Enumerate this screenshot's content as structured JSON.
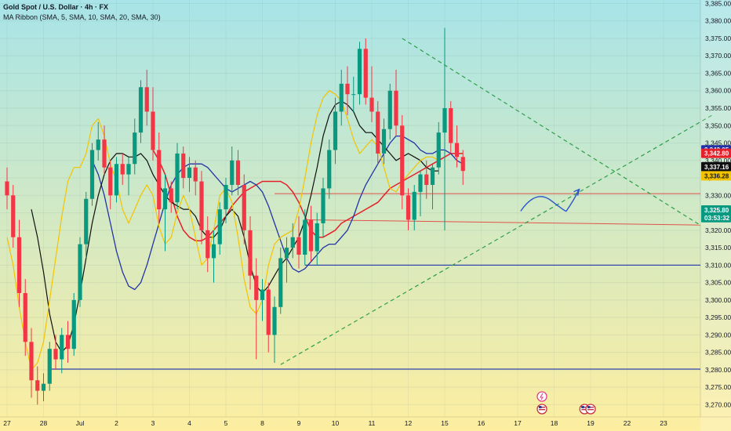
{
  "header": {
    "title": "Gold Spot / U.S. Dollar · 4h · FX",
    "indicator": "MA Ribbon (SMA, 5, SMA, 10, SMA, 20, SMA, 30)"
  },
  "colors": {
    "bull": "#089981",
    "bear": "#f23645",
    "ma5": "#f2c400",
    "ma10": "#101010",
    "ma20": "#2333a6",
    "ma30": "#e5202a",
    "support": "#2a3fb0",
    "resist": "#e53935",
    "trend": "#2e9e4a",
    "arrow": "#2a57c8",
    "bg_top": "#a8e4e8",
    "bg_bottom": "#fdeea0"
  },
  "chart_data": {
    "type": "candlestick",
    "symbol": "Gold Spot / U.S. Dollar",
    "timeframe": "4h",
    "ylim": [
      3266.5,
      3386
    ],
    "y_ticks": [
      3270,
      3275,
      3280,
      3285,
      3290,
      3295,
      3300,
      3305,
      3310,
      3315,
      3320,
      3325,
      3330,
      3335,
      3340,
      3345,
      3350,
      3355,
      3360,
      3365,
      3370,
      3375,
      3380,
      3385
    ],
    "y_tick_labels": [
      "3,270.00",
      "3,275.00",
      "3,280.00",
      "3,285.00",
      "3,290.00",
      "3,295.00",
      "3,300.00",
      "3,305.00",
      "3,310.00",
      "3,315.00",
      "3,320.00",
      "3,325.00",
      "3,330.00",
      "3,335.00",
      "3,340.00",
      "3,345.00",
      "3,350.00",
      "3,355.00",
      "3,360.00",
      "3,365.00",
      "3,370.00",
      "3,375.00",
      "3,380.00",
      "3,385.00"
    ],
    "x_ticks": [
      {
        "label": "27",
        "bar": 0
      },
      {
        "label": "28",
        "bar": 6
      },
      {
        "label": "Jul",
        "bar": 12
      },
      {
        "label": "2",
        "bar": 18
      },
      {
        "label": "3",
        "bar": 24
      },
      {
        "label": "4",
        "bar": 30
      },
      {
        "label": "5",
        "bar": 36
      },
      {
        "label": "8",
        "bar": 42
      },
      {
        "label": "9",
        "bar": 48
      },
      {
        "label": "10",
        "bar": 54
      },
      {
        "label": "11",
        "bar": 60
      },
      {
        "label": "12",
        "bar": 66
      },
      {
        "label": "15",
        "bar": 72
      },
      {
        "label": "16",
        "bar": 78
      },
      {
        "label": "17",
        "bar": 84
      },
      {
        "label": "18",
        "bar": 90
      },
      {
        "label": "19",
        "bar": 96
      },
      {
        "label": "22",
        "bar": 102
      },
      {
        "label": "23",
        "bar": 108
      }
    ],
    "candles": [
      [
        3334,
        3338,
        3326,
        3330
      ],
      [
        3330,
        3333,
        3315,
        3318
      ],
      [
        3318,
        3323,
        3298,
        3302
      ],
      [
        3302,
        3306,
        3284,
        3288
      ],
      [
        3288,
        3292,
        3272,
        3277
      ],
      [
        3277,
        3281,
        3270,
        3274
      ],
      [
        3274,
        3279,
        3271,
        3276
      ],
      [
        3276,
        3288,
        3274,
        3286
      ],
      [
        3286,
        3290,
        3280,
        3283
      ],
      [
        3283,
        3292,
        3279,
        3290
      ],
      [
        3290,
        3294,
        3282,
        3286
      ],
      [
        3286,
        3302,
        3284,
        3300
      ],
      [
        3300,
        3318,
        3298,
        3316
      ],
      [
        3316,
        3331,
        3312,
        3329
      ],
      [
        3329,
        3345,
        3327,
        3343
      ],
      [
        3343,
        3351,
        3340,
        3346
      ],
      [
        3346,
        3350,
        3336,
        3338
      ],
      [
        3338,
        3340,
        3326,
        3330
      ],
      [
        3330,
        3341,
        3328,
        3339
      ],
      [
        3339,
        3342,
        3333,
        3336
      ],
      [
        3336,
        3341,
        3330,
        3339
      ],
      [
        3339,
        3352,
        3336,
        3348
      ],
      [
        3348,
        3363,
        3345,
        3361
      ],
      [
        3361,
        3366,
        3350,
        3354
      ],
      [
        3354,
        3361,
        3340,
        3343
      ],
      [
        3343,
        3348,
        3322,
        3326
      ],
      [
        3326,
        3336,
        3314,
        3332
      ],
      [
        3332,
        3334,
        3325,
        3328
      ],
      [
        3328,
        3345,
        3326,
        3342
      ],
      [
        3342,
        3344,
        3332,
        3335
      ],
      [
        3335,
        3341,
        3331,
        3338
      ],
      [
        3338,
        3340,
        3330,
        3334
      ],
      [
        3334,
        3337,
        3316,
        3320
      ],
      [
        3320,
        3324,
        3308,
        3312
      ],
      [
        3312,
        3320,
        3305,
        3316
      ],
      [
        3316,
        3328,
        3313,
        3326
      ],
      [
        3326,
        3335,
        3322,
        3333
      ],
      [
        3333,
        3344,
        3330,
        3340
      ],
      [
        3340,
        3343,
        3330,
        3333
      ],
      [
        3333,
        3336,
        3316,
        3320
      ],
      [
        3320,
        3324,
        3303,
        3307
      ],
      [
        3307,
        3312,
        3283,
        3300
      ],
      [
        3300,
        3306,
        3294,
        3303
      ],
      [
        3303,
        3305,
        3285,
        3290
      ],
      [
        3290,
        3301,
        3282,
        3298
      ],
      [
        3298,
        3315,
        3296,
        3312
      ],
      [
        3312,
        3318,
        3305,
        3315
      ],
      [
        3315,
        3322,
        3312,
        3318
      ],
      [
        3318,
        3324,
        3309,
        3313
      ],
      [
        3313,
        3326,
        3310,
        3323
      ],
      [
        3323,
        3327,
        3311,
        3314
      ],
      [
        3314,
        3325,
        3310,
        3322
      ],
      [
        3322,
        3335,
        3318,
        3332
      ],
      [
        3332,
        3346,
        3329,
        3343
      ],
      [
        3343,
        3358,
        3339,
        3354
      ],
      [
        3354,
        3366,
        3350,
        3362
      ],
      [
        3362,
        3367,
        3353,
        3359
      ],
      [
        3359,
        3364,
        3354,
        3359
      ],
      [
        3359,
        3374,
        3356,
        3372
      ],
      [
        3372,
        3375,
        3356,
        3358
      ],
      [
        3358,
        3367,
        3351,
        3354
      ],
      [
        3354,
        3357,
        3339,
        3342
      ],
      [
        3342,
        3352,
        3339,
        3349
      ],
      [
        3349,
        3362,
        3346,
        3360
      ],
      [
        3360,
        3366,
        3347,
        3350
      ],
      [
        3350,
        3353,
        3326,
        3330
      ],
      [
        3330,
        3332,
        3320,
        3323
      ],
      [
        3323,
        3333,
        3320,
        3331
      ],
      [
        3331,
        3337,
        3324,
        3336
      ],
      [
        3336,
        3340,
        3329,
        3333
      ],
      [
        3333,
        3339,
        3326,
        3338
      ],
      [
        3338,
        3351,
        3336,
        3348
      ],
      [
        3348,
        3378,
        3320,
        3355
      ],
      [
        3355,
        3357,
        3342,
        3345
      ],
      [
        3345,
        3350,
        3338,
        3341
      ],
      [
        3341,
        3343,
        3333,
        3337
      ]
    ],
    "ma_ribbon": {
      "ma5": [
        3318,
        3310,
        3298,
        3288,
        3280,
        3282,
        3288,
        3300,
        3312,
        3324,
        3334,
        3338,
        3338,
        3342,
        3350,
        3352,
        3347,
        3339,
        3334,
        3326,
        3322,
        3326,
        3330,
        3333,
        3330,
        3321,
        3316,
        3318,
        3325,
        3330,
        3326,
        3318,
        3310,
        3312,
        3320,
        3330,
        3332,
        3328,
        3318,
        3306,
        3298,
        3296,
        3300,
        3310,
        3316,
        3318,
        3319,
        3320,
        3326,
        3335,
        3345,
        3353,
        3358,
        3360,
        3359,
        3357,
        3352,
        3346,
        3342,
        3344,
        3346,
        3344,
        3338,
        3332,
        3331,
        3334,
        3336,
        3338,
        3340,
        3341,
        3341,
        3340
      ],
      "ma10": [
        3326,
        3318,
        3308,
        3296,
        3288,
        3285,
        3287,
        3293,
        3302,
        3312,
        3322,
        3330,
        3336,
        3340,
        3342,
        3342,
        3341,
        3341,
        3342,
        3340,
        3336,
        3333,
        3330,
        3328,
        3327,
        3326,
        3326,
        3324,
        3320,
        3318,
        3318,
        3320,
        3324,
        3326,
        3324,
        3318,
        3310,
        3304,
        3302,
        3304,
        3307,
        3310,
        3312,
        3315,
        3318,
        3323,
        3330,
        3338,
        3347,
        3353,
        3356,
        3357,
        3356,
        3354,
        3350,
        3348,
        3348,
        3346,
        3344,
        3342,
        3340,
        3341,
        3342,
        3341,
        3340,
        3338,
        3337,
        3337
      ],
      "ma20": [
        3340,
        3336,
        3330,
        3322,
        3314,
        3308,
        3304,
        3303,
        3305,
        3310,
        3316,
        3322,
        3328,
        3333,
        3336,
        3338,
        3339,
        3339,
        3339,
        3338,
        3336,
        3334,
        3332,
        3331,
        3332,
        3333,
        3334,
        3333,
        3331,
        3327,
        3322,
        3317,
        3312,
        3309,
        3308,
        3309,
        3311,
        3313,
        3315,
        3316,
        3316,
        3318,
        3320,
        3324,
        3329,
        3333,
        3336,
        3339,
        3342,
        3345,
        3347,
        3347,
        3346,
        3345,
        3343,
        3342,
        3342,
        3343,
        3343,
        3342,
        3340,
        3339
      ],
      "ma30": [
        3343,
        3340,
        3336,
        3330,
        3324,
        3320,
        3318,
        3317,
        3317,
        3318,
        3320,
        3322,
        3324,
        3327,
        3329,
        3331,
        3332,
        3333,
        3334,
        3334,
        3334,
        3334,
        3333,
        3331,
        3328,
        3324,
        3320,
        3318,
        3318,
        3319,
        3320,
        3322,
        3323,
        3324,
        3325,
        3326,
        3327,
        3328,
        3330,
        3332,
        3333,
        3334,
        3335,
        3336,
        3337,
        3338,
        3339,
        3340,
        3341,
        3342,
        3342,
        3342
      ]
    },
    "ma_offsets": [
      0,
      4,
      14,
      24
    ],
    "price_labels": [
      {
        "value": "3,343.05",
        "y": 3343.05,
        "color": "#2333a6"
      },
      {
        "value": "3,342.80",
        "y": 3342.05,
        "color": "#e5202a"
      },
      {
        "value": "3,337.16",
        "y": 3338.2,
        "color": "#101010"
      },
      {
        "value": "3,336.28",
        "y": 3335.6,
        "color": "#f2c400",
        "text": "#131722"
      },
      {
        "value": "3,325.80",
        "y": 3325.8,
        "color": "#089981"
      },
      {
        "value": "03:53:32",
        "y": 3323.6,
        "color": "#089981"
      }
    ],
    "levels": [
      {
        "type": "support",
        "y": 3280.2,
        "from_bar": 7
      },
      {
        "type": "support",
        "y": 3310.0,
        "from_bar": 49
      },
      {
        "type": "resistance",
        "y": 3323.0,
        "from_bar": 49,
        "to_y": 3321.5
      },
      {
        "type": "resistance",
        "y": 3330.5,
        "from_bar": 44
      }
    ],
    "trendlines": [
      {
        "from": [
          45,
          3281.5
        ],
        "to": [
          116,
          3353.0
        ]
      },
      {
        "from": [
          65,
          3375.0
        ],
        "to": [
          114,
          3321.5
        ]
      }
    ],
    "projection": [
      [
        84.5,
        3325.5
      ],
      [
        87,
        3330.5
      ],
      [
        89.5,
        3328.5
      ],
      [
        92,
        3325.5
      ],
      [
        94,
        3331.5
      ]
    ],
    "events": [
      {
        "kind": "flash",
        "bar": 88
      },
      {
        "kind": "us",
        "bar": 88
      },
      {
        "kind": "us",
        "bar": 95
      },
      {
        "kind": "us",
        "bar": 96
      }
    ]
  }
}
